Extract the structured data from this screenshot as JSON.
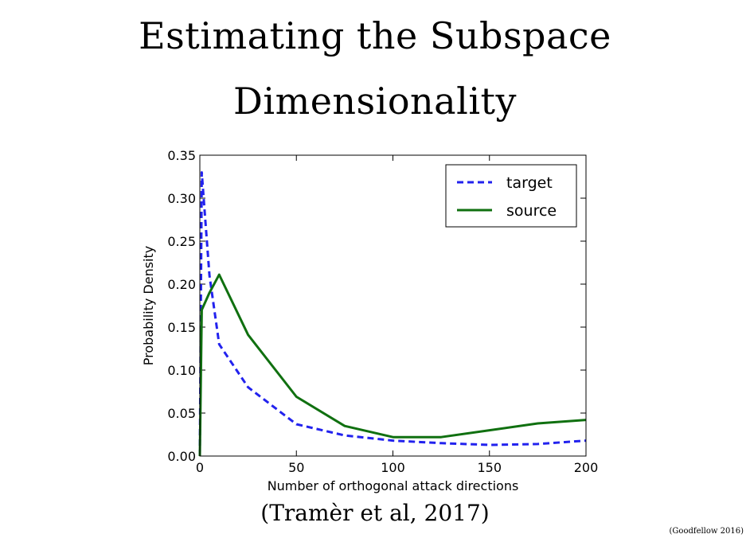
{
  "slide": {
    "title_line1": "Estimating the Subspace",
    "title_line2": "Dimensionality",
    "citation": "(Tramèr et al, 2017)",
    "footnote": "(Goodfellow 2016)"
  },
  "chart_data": {
    "type": "line",
    "title": "",
    "xlabel": "Number of orthogonal attack directions",
    "ylabel": "Probability Density",
    "xlim": [
      0,
      200
    ],
    "ylim": [
      0,
      0.35
    ],
    "xticks": [
      0,
      50,
      100,
      150,
      200
    ],
    "xtick_labels": [
      "0",
      "50",
      "100",
      "150",
      "200"
    ],
    "yticks": [
      0,
      0.05,
      0.1,
      0.15,
      0.2,
      0.25,
      0.3,
      0.35
    ],
    "ytick_labels": [
      "0.00",
      "0.05",
      "0.10",
      "0.15",
      "0.20",
      "0.25",
      "0.30",
      "0.35"
    ],
    "legend_position": "top-right",
    "series": [
      {
        "name": "target",
        "style": "dashed",
        "color": "#2222ee",
        "x": [
          0,
          1,
          2,
          5,
          10,
          25,
          50,
          75,
          100,
          125,
          150,
          175,
          200
        ],
        "y": [
          0.0,
          0.33,
          0.3,
          0.21,
          0.13,
          0.08,
          0.037,
          0.024,
          0.018,
          0.015,
          0.013,
          0.014,
          0.018
        ]
      },
      {
        "name": "source",
        "style": "solid",
        "color": "#107010",
        "x": [
          0,
          1,
          2,
          5,
          10,
          25,
          50,
          75,
          100,
          125,
          150,
          175,
          200
        ],
        "y": [
          0.0,
          0.17,
          0.175,
          0.19,
          0.211,
          0.141,
          0.069,
          0.035,
          0.022,
          0.022,
          0.03,
          0.038,
          0.042
        ]
      }
    ]
  }
}
